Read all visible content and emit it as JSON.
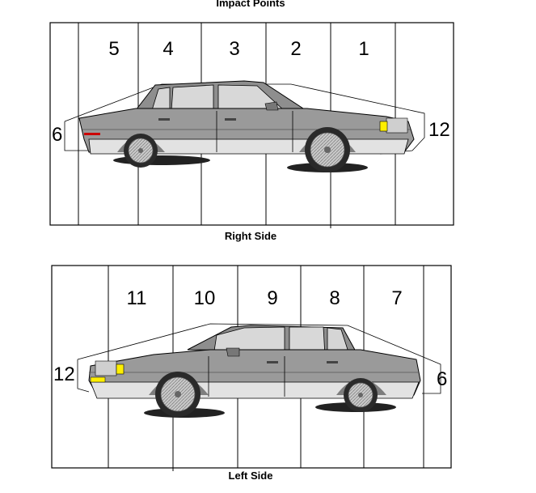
{
  "title": "Impact Points",
  "right_side": {
    "caption": "Right Side",
    "zones": [
      "5",
      "4",
      "3",
      "2",
      "1"
    ],
    "rear_label": "6",
    "front_label": "12"
  },
  "left_side": {
    "caption": "Left Side",
    "zones": [
      "11",
      "10",
      "9",
      "8",
      "7"
    ],
    "front_label": "12",
    "rear_label": "6"
  },
  "colors": {
    "body": "#9a9a9a",
    "body_dark": "#7d7d7d",
    "roof": "#8a8a8a",
    "glass": "#d8d8d8",
    "lower_trim": "#e2e2e2",
    "headlight": "#ffef00",
    "tire": "#2a2a2a",
    "wheel": "#bdbdbd"
  }
}
